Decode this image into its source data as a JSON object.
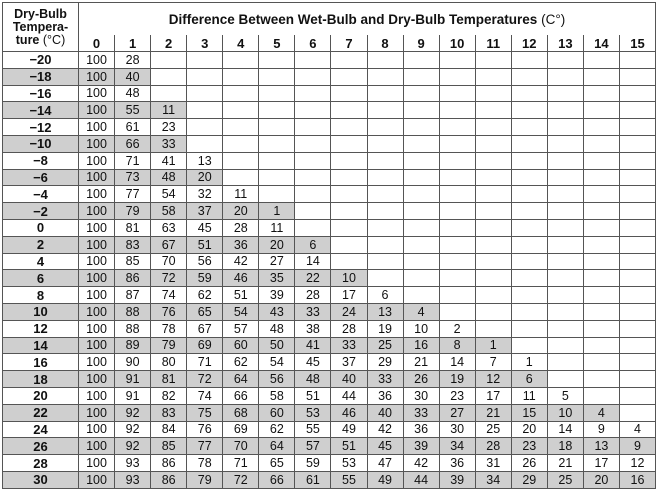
{
  "header": {
    "row_label_line1": "Dry-Bulb",
    "row_label_line2": "Tempera-",
    "row_label_line3": "ture",
    "row_label_unit": "(°C)",
    "title": "Difference Between Wet-Bulb and Dry-Bulb Temperatures",
    "title_unit": "(C°)"
  },
  "columns": [
    "0",
    "1",
    "2",
    "3",
    "4",
    "5",
    "6",
    "7",
    "8",
    "9",
    "10",
    "11",
    "12",
    "13",
    "14",
    "15"
  ],
  "rows": [
    {
      "temp": "−20",
      "shaded": false,
      "values": [
        "100",
        "28"
      ]
    },
    {
      "temp": "−18",
      "shaded": true,
      "values": [
        "100",
        "40"
      ]
    },
    {
      "temp": "−16",
      "shaded": false,
      "values": [
        "100",
        "48"
      ]
    },
    {
      "temp": "−14",
      "shaded": true,
      "values": [
        "100",
        "55",
        "11"
      ]
    },
    {
      "temp": "−12",
      "shaded": false,
      "values": [
        "100",
        "61",
        "23"
      ]
    },
    {
      "temp": "−10",
      "shaded": true,
      "values": [
        "100",
        "66",
        "33"
      ]
    },
    {
      "temp": "−8",
      "shaded": false,
      "values": [
        "100",
        "71",
        "41",
        "13"
      ]
    },
    {
      "temp": "−6",
      "shaded": true,
      "values": [
        "100",
        "73",
        "48",
        "20"
      ]
    },
    {
      "temp": "−4",
      "shaded": false,
      "values": [
        "100",
        "77",
        "54",
        "32",
        "11"
      ]
    },
    {
      "temp": "−2",
      "shaded": true,
      "values": [
        "100",
        "79",
        "58",
        "37",
        "20",
        "1"
      ]
    },
    {
      "temp": "0",
      "shaded": false,
      "values": [
        "100",
        "81",
        "63",
        "45",
        "28",
        "11"
      ]
    },
    {
      "temp": "2",
      "shaded": true,
      "values": [
        "100",
        "83",
        "67",
        "51",
        "36",
        "20",
        "6"
      ]
    },
    {
      "temp": "4",
      "shaded": false,
      "values": [
        "100",
        "85",
        "70",
        "56",
        "42",
        "27",
        "14"
      ]
    },
    {
      "temp": "6",
      "shaded": true,
      "values": [
        "100",
        "86",
        "72",
        "59",
        "46",
        "35",
        "22",
        "10"
      ]
    },
    {
      "temp": "8",
      "shaded": false,
      "values": [
        "100",
        "87",
        "74",
        "62",
        "51",
        "39",
        "28",
        "17",
        "6"
      ]
    },
    {
      "temp": "10",
      "shaded": true,
      "values": [
        "100",
        "88",
        "76",
        "65",
        "54",
        "43",
        "33",
        "24",
        "13",
        "4"
      ]
    },
    {
      "temp": "12",
      "shaded": false,
      "values": [
        "100",
        "88",
        "78",
        "67",
        "57",
        "48",
        "38",
        "28",
        "19",
        "10",
        "2"
      ]
    },
    {
      "temp": "14",
      "shaded": true,
      "values": [
        "100",
        "89",
        "79",
        "69",
        "60",
        "50",
        "41",
        "33",
        "25",
        "16",
        "8",
        "1"
      ]
    },
    {
      "temp": "16",
      "shaded": false,
      "values": [
        "100",
        "90",
        "80",
        "71",
        "62",
        "54",
        "45",
        "37",
        "29",
        "21",
        "14",
        "7",
        "1"
      ]
    },
    {
      "temp": "18",
      "shaded": true,
      "values": [
        "100",
        "91",
        "81",
        "72",
        "64",
        "56",
        "48",
        "40",
        "33",
        "26",
        "19",
        "12",
        "6"
      ]
    },
    {
      "temp": "20",
      "shaded": false,
      "values": [
        "100",
        "91",
        "82",
        "74",
        "66",
        "58",
        "51",
        "44",
        "36",
        "30",
        "23",
        "17",
        "11",
        "5"
      ]
    },
    {
      "temp": "22",
      "shaded": true,
      "values": [
        "100",
        "92",
        "83",
        "75",
        "68",
        "60",
        "53",
        "46",
        "40",
        "33",
        "27",
        "21",
        "15",
        "10",
        "4"
      ]
    },
    {
      "temp": "24",
      "shaded": false,
      "values": [
        "100",
        "92",
        "84",
        "76",
        "69",
        "62",
        "55",
        "49",
        "42",
        "36",
        "30",
        "25",
        "20",
        "14",
        "9",
        "4"
      ]
    },
    {
      "temp": "26",
      "shaded": true,
      "values": [
        "100",
        "92",
        "85",
        "77",
        "70",
        "64",
        "57",
        "51",
        "45",
        "39",
        "34",
        "28",
        "23",
        "18",
        "13",
        "9"
      ]
    },
    {
      "temp": "28",
      "shaded": false,
      "values": [
        "100",
        "93",
        "86",
        "78",
        "71",
        "65",
        "59",
        "53",
        "47",
        "42",
        "36",
        "31",
        "26",
        "21",
        "17",
        "12"
      ]
    },
    {
      "temp": "30",
      "shaded": true,
      "values": [
        "100",
        "93",
        "86",
        "79",
        "72",
        "66",
        "61",
        "55",
        "49",
        "44",
        "39",
        "34",
        "29",
        "25",
        "20",
        "16"
      ]
    }
  ],
  "colors": {
    "shade": "#cfcfcf",
    "border": "#555555"
  }
}
